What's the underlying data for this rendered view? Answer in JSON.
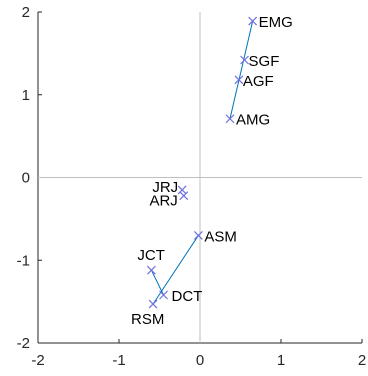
{
  "chart_data": {
    "type": "scatter",
    "title": "",
    "xlabel": "",
    "ylabel": "",
    "xlim": [
      -2,
      2
    ],
    "ylim": [
      -2,
      2
    ],
    "xticks": [
      -2,
      -1,
      0,
      1,
      2
    ],
    "yticks": [
      -2,
      -1,
      0,
      1,
      2
    ],
    "xtick_labels": [
      "-2",
      "-1",
      "0",
      "1",
      "2"
    ],
    "ytick_labels": [
      "-2",
      "-1",
      "0",
      "1",
      "2"
    ],
    "grid": false,
    "reference_lines": {
      "x": 0,
      "y": 0,
      "color": "#bfbfbf"
    },
    "marker": "x",
    "marker_color": "#6f6fe0",
    "line_color": "#0072bd",
    "points": [
      {
        "name": "EMG",
        "x": 0.65,
        "y": 1.89
      },
      {
        "name": "SGF",
        "x": 0.55,
        "y": 1.42
      },
      {
        "name": "AGF",
        "x": 0.48,
        "y": 1.18
      },
      {
        "name": "AMG",
        "x": 0.37,
        "y": 0.71
      },
      {
        "name": "JRJ",
        "x": -0.22,
        "y": -0.15
      },
      {
        "name": "ARJ",
        "x": -0.2,
        "y": -0.22
      },
      {
        "name": "ASM",
        "x": -0.02,
        "y": -0.7
      },
      {
        "name": "JCT",
        "x": -0.6,
        "y": -1.12
      },
      {
        "name": "DCT",
        "x": -0.45,
        "y": -1.42
      },
      {
        "name": "RSM",
        "x": -0.58,
        "y": -1.53
      }
    ],
    "segments": [
      {
        "from": "EMG",
        "to": "AMG"
      },
      {
        "from": "ASM",
        "to": "RSM"
      },
      {
        "from": "JCT",
        "to": "DCT"
      }
    ]
  }
}
